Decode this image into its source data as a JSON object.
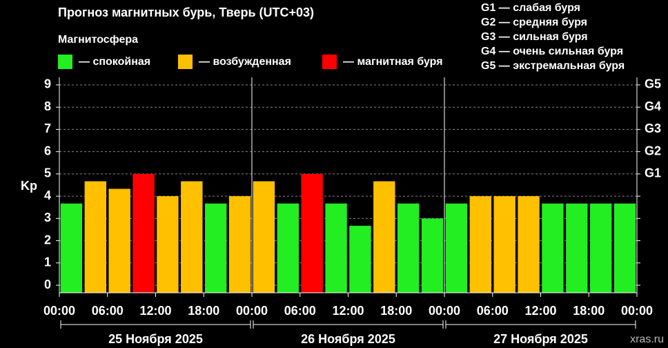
{
  "chart_data": {
    "type": "bar",
    "title": "Прогноз магнитных бурь, Тверь (UTC+03)",
    "subtitle": "Магнитосфера",
    "y_label": "Kp",
    "watermark": "xras.ru",
    "legend": [
      {
        "label": "— спокойная",
        "color": "#22ee22"
      },
      {
        "label": "— возбужденная",
        "color": "#ffc000"
      },
      {
        "label": "— магнитная буря",
        "color": "#ff0000"
      }
    ],
    "notes": [
      "G1 — слабая буря",
      "G2 — средняя буря",
      "G3 — сильная буря",
      "G4 — очень сильная буря",
      "G5 — экстремальная буря"
    ],
    "days": [
      "25 Ноября 2025",
      "26 Ноября 2025",
      "27 Ноября 2025"
    ],
    "x": [
      0,
      3,
      6,
      9,
      12,
      15,
      18,
      21,
      24,
      27,
      30,
      33,
      36,
      39,
      42,
      45,
      48,
      51,
      54,
      57,
      60,
      63,
      66,
      69
    ],
    "values": [
      3.67,
      4.67,
      4.33,
      5,
      4,
      4.67,
      3.67,
      4,
      4.67,
      3.67,
      5,
      3.67,
      2.67,
      4.67,
      3.67,
      3,
      3.67,
      4,
      4,
      4,
      3.67,
      3.67,
      3.67,
      3.67
    ],
    "colors": [
      "#22ee22",
      "#ffc000",
      "#ffc000",
      "#ff0000",
      "#ffc000",
      "#ffc000",
      "#22ee22",
      "#ffc000",
      "#ffc000",
      "#22ee22",
      "#ff0000",
      "#22ee22",
      "#22ee22",
      "#ffc000",
      "#22ee22",
      "#22ee22",
      "#22ee22",
      "#ffc000",
      "#ffc000",
      "#ffc000",
      "#22ee22",
      "#22ee22",
      "#22ee22",
      "#22ee22"
    ],
    "xlim": [
      0,
      72
    ],
    "xticks": [
      {
        "value": 0,
        "label": "00:00"
      },
      {
        "value": 6,
        "label": "06:00"
      },
      {
        "value": 12,
        "label": "12:00"
      },
      {
        "value": 18,
        "label": "18:00"
      },
      {
        "value": 24,
        "label": "00:00"
      },
      {
        "value": 30,
        "label": "06:00"
      },
      {
        "value": 36,
        "label": "12:00"
      },
      {
        "value": 42,
        "label": "18:00"
      },
      {
        "value": 48,
        "label": "00:00"
      },
      {
        "value": 54,
        "label": "06:00"
      },
      {
        "value": 60,
        "label": "12:00"
      },
      {
        "value": 66,
        "label": "18:00"
      },
      {
        "value": 72,
        "label": "00:00"
      }
    ],
    "ylim": [
      -0.34,
      9.34
    ],
    "yticks": [
      0,
      1,
      2,
      3,
      4,
      5,
      6,
      7,
      8,
      9
    ],
    "y2lim": [
      -0.34,
      9.34
    ],
    "y2ticks": [
      {
        "value": 5,
        "label": "G1"
      },
      {
        "value": 6,
        "label": "G2"
      },
      {
        "value": 7,
        "label": "G3"
      },
      {
        "value": 8,
        "label": "G4"
      },
      {
        "value": 9,
        "label": "G5"
      }
    ],
    "grid": true
  }
}
